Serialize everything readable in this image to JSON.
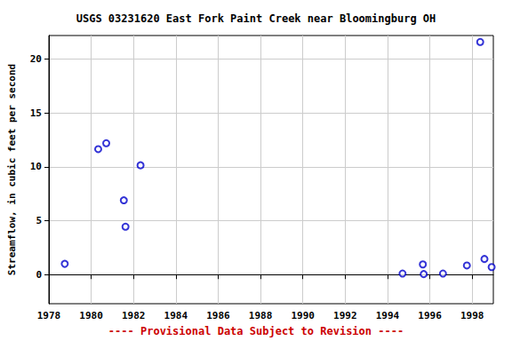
{
  "chart_data": {
    "type": "scatter",
    "title": "USGS 03231620 East Fork Paint Creek near Bloomingburg OH",
    "ylabel": "Streamflow, in cubic feet per second",
    "annotation": "---- Provisional Data Subject to Revision ----",
    "x": [
      1978.75,
      1980.33,
      1980.71,
      1981.54,
      1981.62,
      1982.33,
      1994.71,
      1995.67,
      1995.71,
      1996.62,
      1997.75,
      1998.38,
      1998.58,
      1998.92
    ],
    "values": [
      1.0,
      11.65,
      12.2,
      6.9,
      4.45,
      10.15,
      0.1,
      0.95,
      0.05,
      0.1,
      0.85,
      21.6,
      1.45,
      0.7
    ],
    "color": "#0000cc",
    "marker": "circle",
    "xlim": [
      1978,
      1999
    ],
    "xticks": [
      1978,
      1980,
      1982,
      1984,
      1986,
      1988,
      1990,
      1992,
      1994,
      1996,
      1998
    ],
    "ylim": [
      -2.7,
      22.2
    ],
    "yticks": [
      0,
      5,
      10,
      15,
      20
    ],
    "grid": true
  }
}
